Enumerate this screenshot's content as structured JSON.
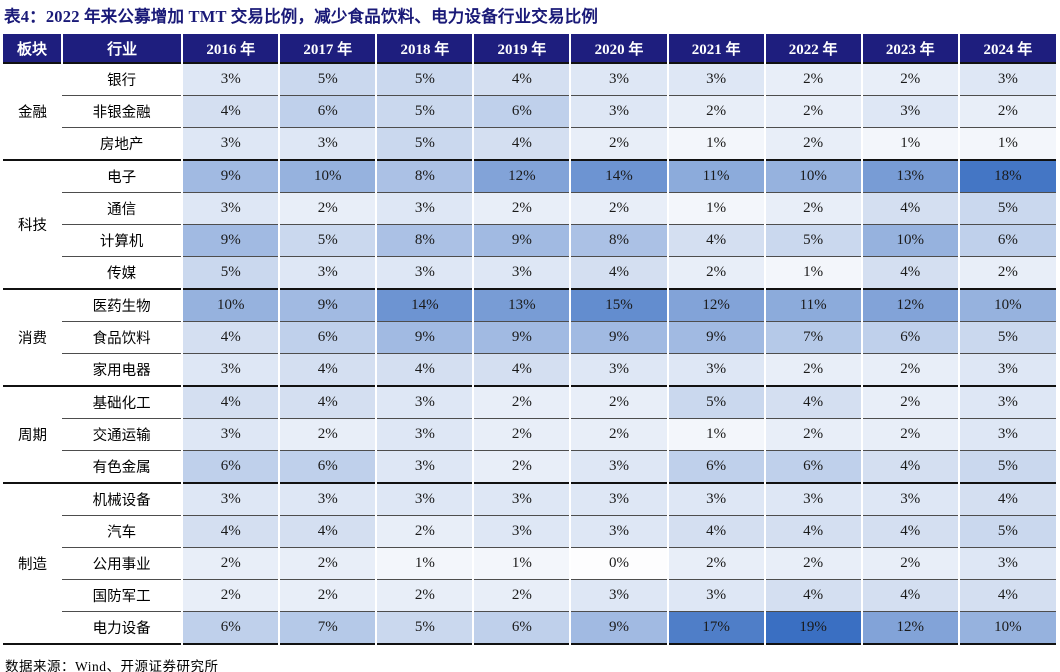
{
  "title": "表4：2022 年来公募增加 TMT 交易比例，减少食品饮料、电力设备行业交易比例",
  "footer": "数据来源：Wind、开源证券研究所",
  "colors": {
    "header_bg": "#1E1E7E",
    "header_text": "#FFFFFF",
    "title_text": "#1A1A78",
    "heat_min": "#FDFDFE",
    "heat_max": "#3A6FC2",
    "group_border": "#111111",
    "row_border": "#4D4D4D"
  },
  "chart_data": {
    "type": "heatmap",
    "title": "表4：2022 年来公募增加 TMT 交易比例，减少食品饮料、电力设备行业交易比例",
    "unit": "%",
    "col_headers": [
      "板块",
      "行业"
    ],
    "columns": [
      "2016 年",
      "2017 年",
      "2018 年",
      "2019 年",
      "2020 年",
      "2021 年",
      "2022 年",
      "2023 年",
      "2024 年"
    ],
    "value_range": [
      0,
      19
    ],
    "groups": [
      {
        "sector": "金融",
        "rows": [
          {
            "industry": "银行",
            "values": [
              3,
              5,
              5,
              4,
              3,
              3,
              2,
              2,
              3
            ]
          },
          {
            "industry": "非银金融",
            "values": [
              4,
              6,
              5,
              6,
              3,
              2,
              2,
              3,
              2
            ]
          },
          {
            "industry": "房地产",
            "values": [
              3,
              3,
              5,
              4,
              2,
              1,
              2,
              1,
              1
            ]
          }
        ]
      },
      {
        "sector": "科技",
        "rows": [
          {
            "industry": "电子",
            "values": [
              9,
              10,
              8,
              12,
              14,
              11,
              10,
              13,
              18
            ]
          },
          {
            "industry": "通信",
            "values": [
              3,
              2,
              3,
              2,
              2,
              1,
              2,
              4,
              5
            ]
          },
          {
            "industry": "计算机",
            "values": [
              9,
              5,
              8,
              9,
              8,
              4,
              5,
              10,
              6
            ]
          },
          {
            "industry": "传媒",
            "values": [
              5,
              3,
              3,
              3,
              4,
              2,
              1,
              4,
              2
            ]
          }
        ]
      },
      {
        "sector": "消费",
        "rows": [
          {
            "industry": "医药生物",
            "values": [
              10,
              9,
              14,
              13,
              15,
              12,
              11,
              12,
              10
            ]
          },
          {
            "industry": "食品饮料",
            "values": [
              4,
              6,
              9,
              9,
              9,
              9,
              7,
              6,
              5
            ]
          },
          {
            "industry": "家用电器",
            "values": [
              3,
              4,
              4,
              4,
              3,
              3,
              2,
              2,
              3
            ]
          }
        ]
      },
      {
        "sector": "周期",
        "rows": [
          {
            "industry": "基础化工",
            "values": [
              4,
              4,
              3,
              2,
              2,
              5,
              4,
              2,
              3
            ]
          },
          {
            "industry": "交通运输",
            "values": [
              3,
              2,
              3,
              2,
              2,
              1,
              2,
              2,
              3
            ]
          },
          {
            "industry": "有色金属",
            "values": [
              6,
              6,
              3,
              2,
              3,
              6,
              6,
              4,
              5
            ]
          }
        ]
      },
      {
        "sector": "制造",
        "rows": [
          {
            "industry": "机械设备",
            "values": [
              3,
              3,
              3,
              3,
              3,
              3,
              3,
              3,
              4
            ]
          },
          {
            "industry": "汽车",
            "values": [
              4,
              4,
              2,
              3,
              3,
              4,
              4,
              4,
              5
            ]
          },
          {
            "industry": "公用事业",
            "values": [
              2,
              2,
              1,
              1,
              0,
              2,
              2,
              2,
              3
            ]
          },
          {
            "industry": "国防军工",
            "values": [
              2,
              2,
              2,
              2,
              3,
              3,
              4,
              4,
              4
            ]
          },
          {
            "industry": "电力设备",
            "values": [
              6,
              7,
              5,
              6,
              9,
              17,
              19,
              12,
              10
            ]
          }
        ]
      }
    ],
    "source": "数据来源：Wind、开源证券研究所",
    "legend_position": "none",
    "grid": true
  }
}
